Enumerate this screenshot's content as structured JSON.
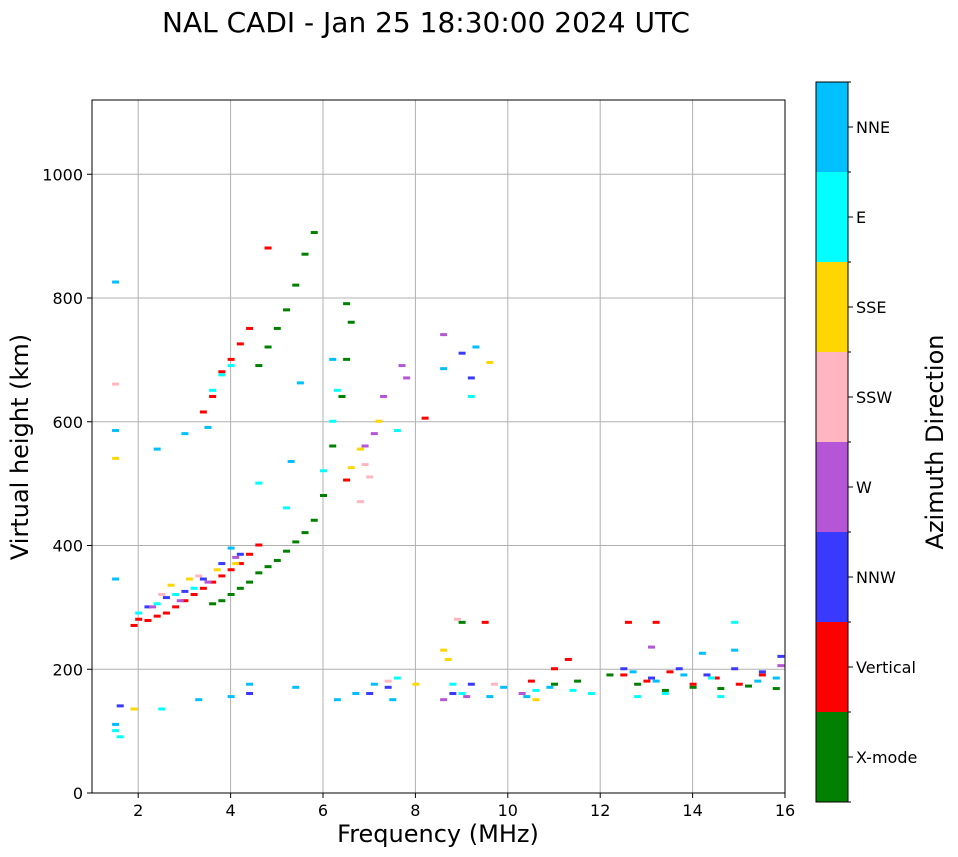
{
  "chart_data": {
    "type": "scatter",
    "title": "NAL CADI - Jan 25 18:30:00 2024 UTC",
    "xlabel": "Frequency (MHz)",
    "ylabel": "Virtual height (km)",
    "xlim": [
      1,
      16
    ],
    "ylim": [
      0,
      1120
    ],
    "xticks": [
      2,
      4,
      6,
      8,
      10,
      12,
      14,
      16
    ],
    "yticks": [
      0,
      200,
      400,
      600,
      800,
      1000
    ],
    "grid": true,
    "colorbar": {
      "label": "Azimuth Direction",
      "categories": [
        {
          "name": "X-mode",
          "color": "#008000"
        },
        {
          "name": "Vertical",
          "color": "#ff0000"
        },
        {
          "name": "NNW",
          "color": "#3a3aff"
        },
        {
          "name": "W",
          "color": "#b456d6"
        },
        {
          "name": "SSW",
          "color": "#ffb6c1"
        },
        {
          "name": "SSE",
          "color": "#ffd700"
        },
        {
          "name": "E",
          "color": "#00ffff"
        },
        {
          "name": "NNE",
          "color": "#00bfff"
        }
      ]
    },
    "series": [
      {
        "name": "Vertical",
        "color": "#ff0000",
        "points": [
          [
            1.9,
            270
          ],
          [
            2.0,
            280
          ],
          [
            2.2,
            278
          ],
          [
            2.4,
            285
          ],
          [
            2.6,
            290
          ],
          [
            2.8,
            300
          ],
          [
            3.0,
            310
          ],
          [
            3.2,
            320
          ],
          [
            3.4,
            330
          ],
          [
            3.6,
            340
          ],
          [
            3.8,
            350
          ],
          [
            4.0,
            360
          ],
          [
            4.2,
            370
          ],
          [
            4.4,
            385
          ],
          [
            4.6,
            400
          ],
          [
            3.4,
            615
          ],
          [
            3.6,
            640
          ],
          [
            3.8,
            680
          ],
          [
            4.0,
            700
          ],
          [
            4.2,
            725
          ],
          [
            4.4,
            750
          ],
          [
            4.8,
            880
          ],
          [
            6.5,
            505
          ],
          [
            9.5,
            275
          ],
          [
            12.6,
            275
          ],
          [
            13.2,
            275
          ],
          [
            12.5,
            190
          ],
          [
            13.0,
            180
          ],
          [
            13.5,
            195
          ],
          [
            14.0,
            175
          ],
          [
            14.5,
            185
          ],
          [
            15.0,
            175
          ],
          [
            15.5,
            190
          ],
          [
            11.0,
            200
          ],
          [
            11.3,
            215
          ],
          [
            10.5,
            180
          ],
          [
            8.2,
            605
          ]
        ]
      },
      {
        "name": "X-mode",
        "color": "#008000",
        "points": [
          [
            3.6,
            305
          ],
          [
            3.8,
            310
          ],
          [
            4.0,
            320
          ],
          [
            4.2,
            330
          ],
          [
            4.4,
            340
          ],
          [
            4.6,
            355
          ],
          [
            4.8,
            365
          ],
          [
            5.0,
            375
          ],
          [
            5.2,
            390
          ],
          [
            5.4,
            405
          ],
          [
            5.6,
            420
          ],
          [
            5.8,
            440
          ],
          [
            6.0,
            480
          ],
          [
            6.2,
            560
          ],
          [
            6.4,
            640
          ],
          [
            6.5,
            700
          ],
          [
            6.6,
            760
          ],
          [
            6.5,
            790
          ],
          [
            4.6,
            690
          ],
          [
            4.8,
            720
          ],
          [
            5.0,
            750
          ],
          [
            5.2,
            780
          ],
          [
            5.4,
            820
          ],
          [
            5.6,
            870
          ],
          [
            5.8,
            905
          ],
          [
            11.0,
            175
          ],
          [
            11.5,
            180
          ],
          [
            12.2,
            190
          ],
          [
            12.8,
            175
          ],
          [
            13.4,
            165
          ],
          [
            14.0,
            170
          ],
          [
            14.6,
            168
          ],
          [
            15.2,
            172
          ],
          [
            15.8,
            168
          ],
          [
            9.0,
            275
          ]
        ]
      },
      {
        "name": "NNW",
        "color": "#3a3aff",
        "points": [
          [
            1.6,
            140
          ],
          [
            2.2,
            300
          ],
          [
            2.6,
            315
          ],
          [
            3.0,
            325
          ],
          [
            3.4,
            345
          ],
          [
            3.8,
            370
          ],
          [
            4.2,
            385
          ],
          [
            4.4,
            160
          ],
          [
            7.0,
            160
          ],
          [
            7.4,
            170
          ],
          [
            8.8,
            160
          ],
          [
            9.2,
            175
          ],
          [
            12.5,
            200
          ],
          [
            13.1,
            185
          ],
          [
            13.7,
            200
          ],
          [
            14.3,
            190
          ],
          [
            14.9,
            200
          ],
          [
            15.5,
            195
          ],
          [
            15.9,
            220
          ],
          [
            9.2,
            670
          ],
          [
            9.0,
            710
          ]
        ]
      },
      {
        "name": "W",
        "color": "#b456d6",
        "points": [
          [
            2.3,
            300
          ],
          [
            2.9,
            310
          ],
          [
            3.5,
            340
          ],
          [
            4.1,
            380
          ],
          [
            6.9,
            560
          ],
          [
            7.1,
            580
          ],
          [
            7.3,
            640
          ],
          [
            7.7,
            690
          ],
          [
            7.8,
            670
          ],
          [
            8.6,
            740
          ],
          [
            8.6,
            150
          ],
          [
            9.1,
            155
          ],
          [
            10.3,
            160
          ],
          [
            13.1,
            235
          ],
          [
            15.9,
            205
          ]
        ]
      },
      {
        "name": "SSW",
        "color": "#ffb6c1",
        "points": [
          [
            1.5,
            660
          ],
          [
            2.5,
            320
          ],
          [
            3.3,
            350
          ],
          [
            6.9,
            530
          ],
          [
            7.0,
            510
          ],
          [
            6.8,
            470
          ],
          [
            8.9,
            280
          ],
          [
            7.4,
            180
          ],
          [
            9.7,
            175
          ]
        ]
      },
      {
        "name": "SSE",
        "color": "#ffd700",
        "points": [
          [
            1.5,
            540
          ],
          [
            2.7,
            335
          ],
          [
            3.1,
            345
          ],
          [
            3.7,
            360
          ],
          [
            4.1,
            370
          ],
          [
            6.6,
            525
          ],
          [
            6.8,
            555
          ],
          [
            7.2,
            600
          ],
          [
            8.6,
            230
          ],
          [
            8.7,
            215
          ],
          [
            9.6,
            695
          ],
          [
            10.6,
            150
          ],
          [
            8.0,
            175
          ],
          [
            1.9,
            135
          ]
        ]
      },
      {
        "name": "E",
        "color": "#00ffff",
        "points": [
          [
            1.5,
            100
          ],
          [
            1.6,
            90
          ],
          [
            2.0,
            290
          ],
          [
            2.4,
            305
          ],
          [
            2.8,
            320
          ],
          [
            3.2,
            330
          ],
          [
            3.6,
            650
          ],
          [
            3.8,
            675
          ],
          [
            4.0,
            690
          ],
          [
            4.6,
            500
          ],
          [
            5.2,
            460
          ],
          [
            6.0,
            520
          ],
          [
            6.3,
            650
          ],
          [
            6.2,
            600
          ],
          [
            7.6,
            585
          ],
          [
            9.2,
            640
          ],
          [
            8.8,
            175
          ],
          [
            9.0,
            160
          ],
          [
            7.6,
            185
          ],
          [
            10.6,
            165
          ],
          [
            11.4,
            165
          ],
          [
            11.8,
            160
          ],
          [
            14.9,
            275
          ],
          [
            14.4,
            185
          ],
          [
            12.8,
            155
          ],
          [
            13.4,
            160
          ],
          [
            14.6,
            155
          ],
          [
            2.5,
            135
          ]
        ]
      },
      {
        "name": "NNE",
        "color": "#00bfff",
        "points": [
          [
            1.5,
            825
          ],
          [
            1.5,
            585
          ],
          [
            1.5,
            345
          ],
          [
            1.5,
            110
          ],
          [
            2.4,
            555
          ],
          [
            3.5,
            590
          ],
          [
            4.0,
            395
          ],
          [
            4.4,
            175
          ],
          [
            4.0,
            155
          ],
          [
            3.3,
            150
          ],
          [
            5.4,
            170
          ],
          [
            5.3,
            535
          ],
          [
            6.2,
            700
          ],
          [
            6.7,
            160
          ],
          [
            6.3,
            150
          ],
          [
            7.1,
            175
          ],
          [
            7.5,
            150
          ],
          [
            8.6,
            685
          ],
          [
            9.3,
            720
          ],
          [
            9.6,
            155
          ],
          [
            9.9,
            170
          ],
          [
            10.4,
            155
          ],
          [
            10.9,
            170
          ],
          [
            12.7,
            195
          ],
          [
            13.2,
            180
          ],
          [
            13.8,
            190
          ],
          [
            14.2,
            225
          ],
          [
            14.9,
            230
          ],
          [
            15.4,
            180
          ],
          [
            15.8,
            185
          ],
          [
            5.5,
            662
          ],
          [
            3.0,
            580
          ]
        ]
      }
    ]
  }
}
